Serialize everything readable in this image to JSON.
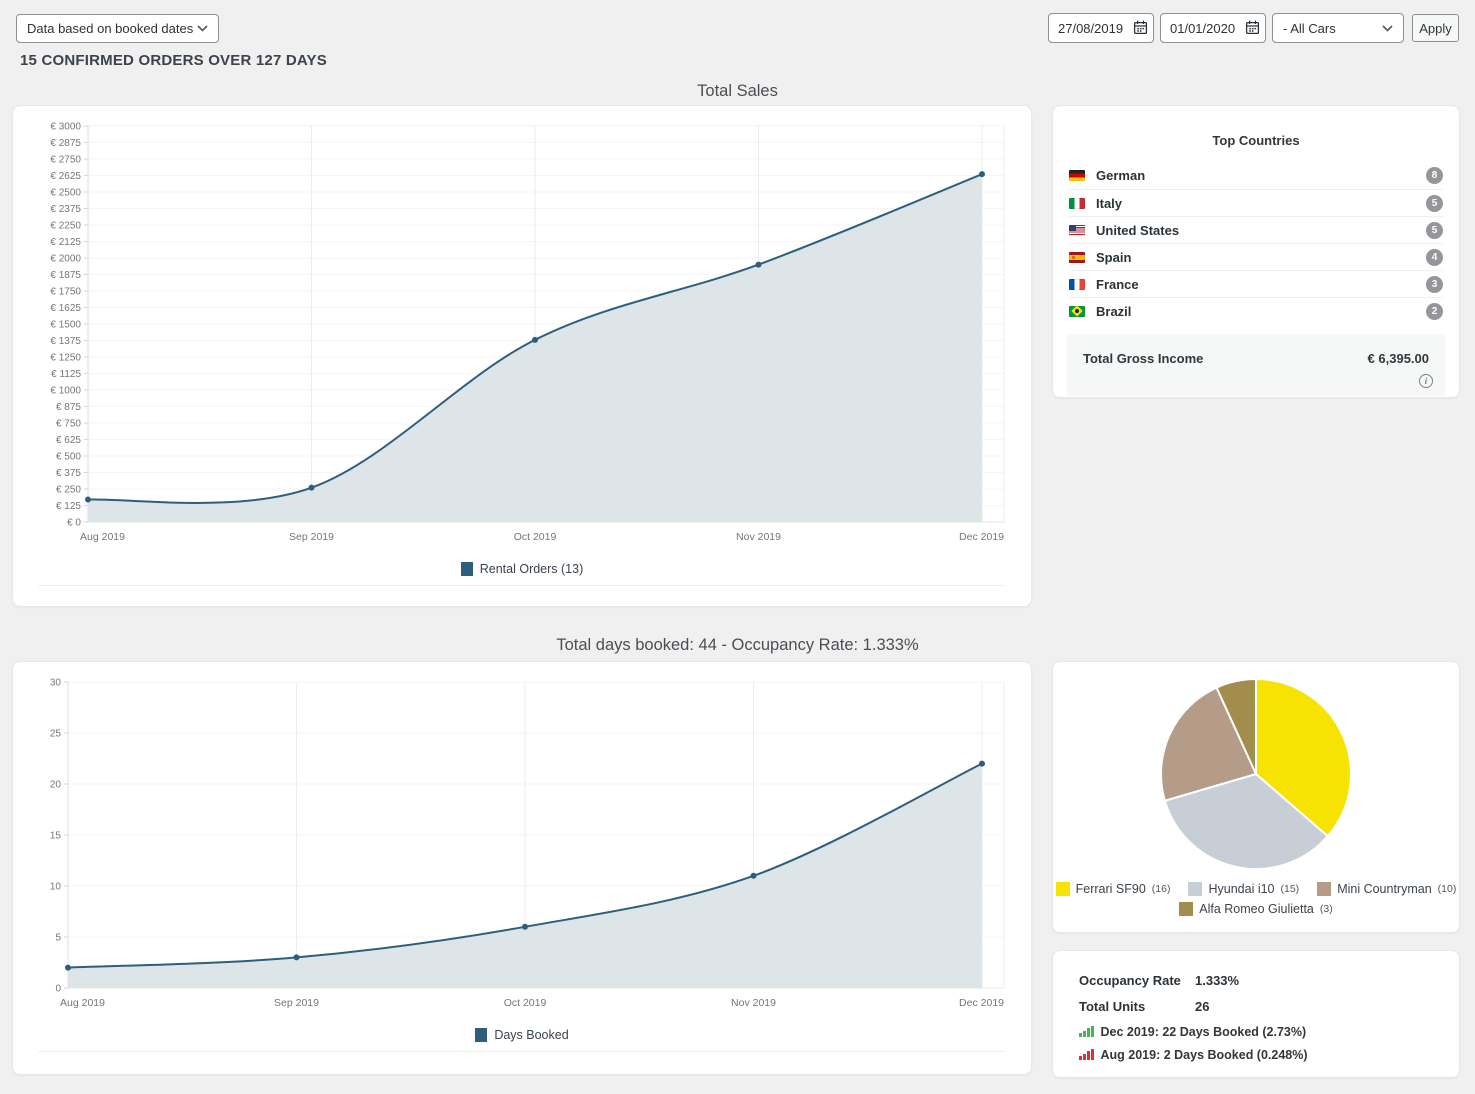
{
  "toolbar": {
    "data_source_select": "Data based on booked dates",
    "date_from": "27/08/2019",
    "date_to": "01/01/2020",
    "cars_select": "- All Cars",
    "apply_label": "Apply"
  },
  "heading": "15 CONFIRMED ORDERS OVER 127 DAYS",
  "top_countries": {
    "title": "Top Countries",
    "rows": [
      {
        "flag": "germany",
        "name": "German",
        "count": 8
      },
      {
        "flag": "italy",
        "name": "Italy",
        "count": 5
      },
      {
        "flag": "us",
        "name": "United States",
        "count": 5
      },
      {
        "flag": "spain",
        "name": "Spain",
        "count": 4
      },
      {
        "flag": "france",
        "name": "France",
        "count": 3
      },
      {
        "flag": "brazil",
        "name": "Brazil",
        "count": 2
      }
    ],
    "gross_income_label": "Total Gross Income",
    "gross_income_value": "€ 6,395.00",
    "info_icon": "info-circle-icon"
  },
  "stats": {
    "rows": [
      {
        "label": "Occupancy Rate",
        "value": "1.333%"
      },
      {
        "label": "Total Units",
        "value": "26"
      }
    ],
    "highlights": [
      {
        "icon": "bar-chart-up-green-icon",
        "color": "#46b450",
        "text": "Dec 2019: 22 Days Booked (2.73%)"
      },
      {
        "icon": "bar-chart-up-red-icon",
        "color": "#dc3232",
        "text": "Aug 2019: 2 Days Booked (0.248%)"
      }
    ]
  },
  "chart_data": [
    {
      "type": "area",
      "title": "Total Sales",
      "x": [
        "Aug 2019",
        "Sep 2019",
        "Oct 2019",
        "Nov 2019",
        "Dec 2019"
      ],
      "series": [
        {
          "name": "Rental Orders (13)",
          "values": [
            170,
            260,
            1380,
            1950,
            2635
          ]
        }
      ],
      "ylim": [
        0,
        3000
      ],
      "ytick_step": 125,
      "y_prefix": "€ ",
      "xlabel": "",
      "ylabel": "",
      "grid": true,
      "legend_position": "bottom",
      "line_color": "#2d5f7d",
      "fill_color": "#dee5e9"
    },
    {
      "type": "area",
      "title": "Total days booked: 44 - Occupancy Rate: 1.333%",
      "x": [
        "Aug 2019",
        "Sep 2019",
        "Oct 2019",
        "Nov 2019",
        "Dec 2019"
      ],
      "series": [
        {
          "name": "Days Booked",
          "values": [
            2,
            3,
            6,
            11,
            22
          ]
        }
      ],
      "ylim": [
        0,
        30
      ],
      "ytick_step": 5,
      "y_prefix": "",
      "xlabel": "",
      "ylabel": "",
      "grid": true,
      "legend_position": "bottom",
      "line_color": "#2d5f7d",
      "fill_color": "#dee5e9"
    },
    {
      "type": "pie",
      "title": "",
      "slices": [
        {
          "label": "Ferrari SF90",
          "value": 16,
          "color": "#f6e304"
        },
        {
          "label": "Hyundai i10",
          "value": 15,
          "color": "#c7ced5"
        },
        {
          "label": "Mini Countryman",
          "value": 10,
          "color": "#b59c89"
        },
        {
          "label": "Alfa Romeo Giulietta",
          "value": 3,
          "color": "#a28d4c"
        }
      ],
      "legend_position": "bottom"
    }
  ]
}
